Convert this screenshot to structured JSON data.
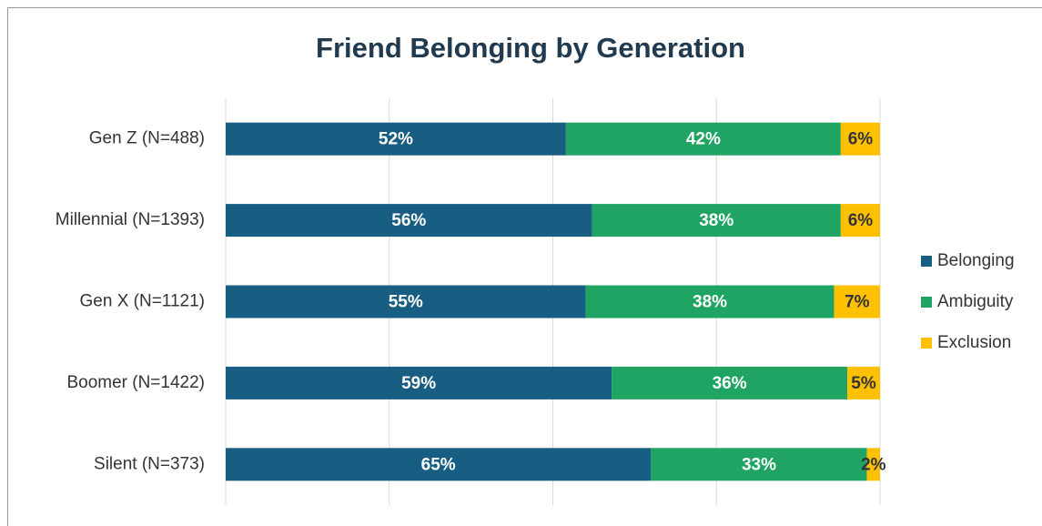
{
  "chart_data": {
    "type": "stacked_bar_horizontal",
    "title": "Friend Belonging by Generation",
    "categories": [
      "Gen Z (N=488)",
      "Millennial (N=1393)",
      "Gen X (N=1121)",
      "Boomer (N=1422)",
      "Silent (N=373)"
    ],
    "series": [
      {
        "name": "Belonging",
        "color": "#175e82",
        "values": [
          52,
          56,
          55,
          59,
          65
        ],
        "value_labels": [
          "52%",
          "56%",
          "55%",
          "59%",
          "65%"
        ]
      },
      {
        "name": "Ambiguity",
        "color": "#1fa463",
        "values": [
          42,
          38,
          38,
          36,
          33
        ],
        "value_labels": [
          "42%",
          "38%",
          "38%",
          "36%",
          "33%"
        ]
      },
      {
        "name": "Exclusion",
        "color": "#ffc000",
        "values": [
          6,
          6,
          7,
          5,
          2
        ],
        "value_labels": [
          "6%",
          "6%",
          "7%",
          "5%",
          "2%"
        ]
      }
    ],
    "xlim": [
      0,
      100
    ],
    "xticks": [
      0,
      25,
      50,
      75,
      100
    ],
    "grid": true,
    "legend": "right"
  }
}
